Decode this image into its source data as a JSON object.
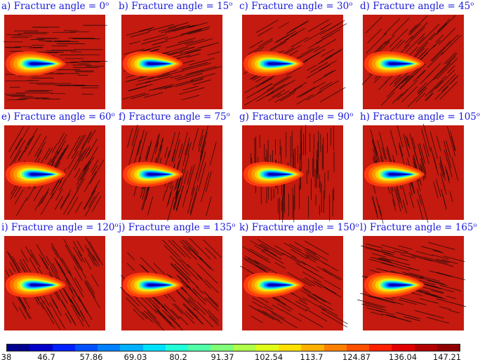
{
  "panels": [
    {
      "prefix": "a) Fracture angle = ",
      "angle": "0",
      "unit": "o",
      "deg": 0
    },
    {
      "prefix": "b) Fracture angle = ",
      "angle": "15",
      "unit": "o",
      "deg": 15
    },
    {
      "prefix": "c) Fracture angle = ",
      "angle": "30",
      "unit": "o",
      "deg": 30
    },
    {
      "prefix": "d) Fracture angle = ",
      "angle": "45",
      "unit": "o",
      "deg": 45
    },
    {
      "prefix": "e) Fracture angle = ",
      "angle": "60",
      "unit": "o",
      "deg": 60
    },
    {
      "prefix": "f) Fracture angle = ",
      "angle": "75",
      "unit": "o",
      "deg": 75
    },
    {
      "prefix": "g) Fracture angle = ",
      "angle": "90",
      "unit": "o",
      "deg": 90
    },
    {
      "prefix": "h) Fracture angle = ",
      "angle": "105",
      "unit": "o",
      "deg": 105
    },
    {
      "prefix": "i) Fracture angle = ",
      "angle": "120",
      "unit": "o",
      "deg": 120
    },
    {
      "prefix": "j) Fracture angle = ",
      "angle": "135",
      "unit": "o",
      "deg": 135
    },
    {
      "prefix": "k) Fracture angle = ",
      "angle": "150",
      "unit": "o",
      "deg": 150
    },
    {
      "prefix": "l) Fracture angle = ",
      "angle": "165",
      "unit": "o",
      "deg": 165
    }
  ],
  "colorbar": {
    "ticks": [
      "38",
      "46.7",
      "57.86",
      "69.03",
      "80.2",
      "91.37",
      "102.54",
      "113.7",
      "124.87",
      "136.04",
      "147.21"
    ],
    "colors": [
      "#00008f",
      "#0000c8",
      "#0020ff",
      "#0050ff",
      "#0080ff",
      "#00b0ff",
      "#00e0ff",
      "#20ffd8",
      "#50ffa8",
      "#80ff78",
      "#b0ff48",
      "#e0ff18",
      "#ffe000",
      "#ffb000",
      "#ff8000",
      "#ff5000",
      "#ff2000",
      "#e00000",
      "#b00000",
      "#8f0000"
    ],
    "background_color": "#c41a0f"
  }
}
